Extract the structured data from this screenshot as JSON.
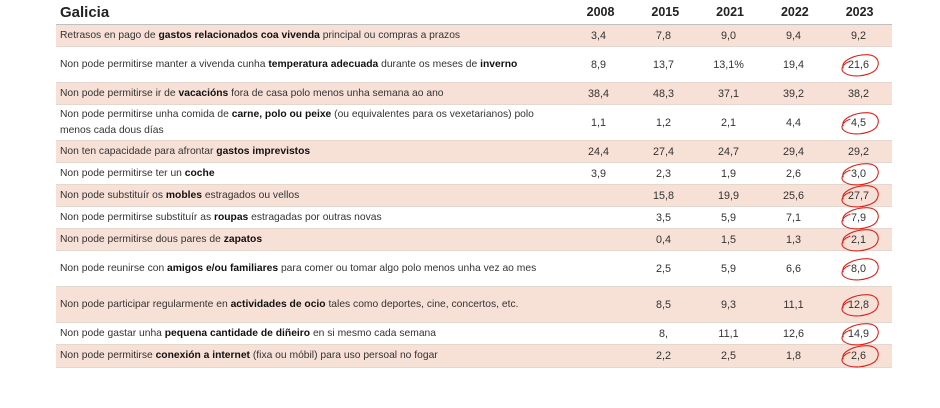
{
  "table": {
    "title": "Galicia",
    "years": [
      "2008",
      "2015",
      "2021",
      "2022",
      "2023"
    ],
    "rows": [
      {
        "pre": "Retrasos en pago de ",
        "bold": "gastos relacionados coa vivenda",
        "post": " principal ou compras a prazos",
        "values": [
          "3,4",
          "7,8",
          "9,0",
          "9,4",
          "9,2"
        ],
        "circled": false
      },
      {
        "pre": "Non pode permitirse manter a vivenda cunha ",
        "bold": "temperatura adecuada",
        "post": " durante os meses de ",
        "bold2": "inverno",
        "values": [
          "8,9",
          "13,7",
          "13,1%",
          "19,4",
          "21,6"
        ],
        "circled": true
      },
      {
        "pre": "Non pode permitirse ir de ",
        "bold": "vacacións",
        "post": " fora de casa polo menos unha semana ao ano",
        "values": [
          "38,4",
          "48,3",
          "37,1",
          "39,2",
          "38,2"
        ],
        "circled": false
      },
      {
        "pre": "Non pode permitirse unha comida de ",
        "bold": "carne, polo ou peixe",
        "post": " (ou equivalentes para os vexetarianos) polo menos cada dous días",
        "values": [
          "1,1",
          "1,2",
          "2,1",
          "4,4",
          "4,5"
        ],
        "circled": true
      },
      {
        "pre": "Non ten capacidade para afrontar ",
        "bold": "gastos imprevistos",
        "post": "",
        "values": [
          "24,4",
          "27,4",
          "24,7",
          "29,4",
          "29,2"
        ],
        "circled": false
      },
      {
        "pre": "Non pode permitirse ter un ",
        "bold": "coche",
        "post": "",
        "values": [
          "3,9",
          "2,3",
          "1,9",
          "2,6",
          "3,0"
        ],
        "circled": true
      },
      {
        "pre": "Non pode substituír os ",
        "bold": "mobles",
        "post": " estragados ou vellos",
        "values": [
          "",
          "15,8",
          "19,9",
          "25,6",
          "27,7"
        ],
        "circled": true
      },
      {
        "pre": "Non pode permitirse substituír as ",
        "bold": "roupas",
        "post": " estragadas por outras novas",
        "values": [
          "",
          "3,5",
          "5,9",
          "7,1",
          "7,9"
        ],
        "circled": true
      },
      {
        "pre": "Non pode permitirse dous pares de ",
        "bold": "zapatos",
        "post": "",
        "values": [
          "",
          "0,4",
          "1,5",
          "1,3",
          "2,1"
        ],
        "circled": true
      },
      {
        "pre": "Non pode reunirse con ",
        "bold": "amigos e/ou familiares",
        "post": " para comer ou tomar algo polo menos unha vez ao mes",
        "values": [
          "",
          "2,5",
          "5,9",
          "6,6",
          "8,0"
        ],
        "circled": true
      },
      {
        "pre": "Non pode participar regularmente en ",
        "bold": "actividades de ocio",
        "post": " tales como deportes, cine, concertos, etc.",
        "values": [
          "",
          "8,5",
          "9,3",
          "11,1",
          "12,8"
        ],
        "circled": true
      },
      {
        "pre": "Non pode gastar unha ",
        "bold": "pequena cantidade de diñeiro",
        "post": " en si mesmo cada semana",
        "values": [
          "",
          "8,",
          "11,1",
          "12,6",
          "14,9"
        ],
        "circled": true
      },
      {
        "pre": "Non pode permitirse ",
        "bold": "conexión a internet",
        "post": " (fixa ou móbil) para uso persoal no fogar",
        "values": [
          "",
          "2,2",
          "2,5",
          "1,8",
          "2,6"
        ],
        "circled": true
      }
    ]
  },
  "colors": {
    "shade": "#f7e0d6",
    "circle": "#d9241c"
  }
}
